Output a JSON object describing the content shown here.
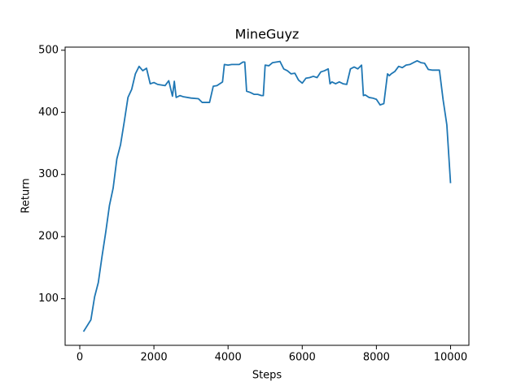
{
  "chart_data": {
    "type": "line",
    "title": "MineGuyz",
    "x_label": "Steps",
    "y_label": "Return",
    "x": [
      100,
      300,
      400,
      500,
      600,
      700,
      800,
      900,
      1000,
      1100,
      1200,
      1300,
      1400,
      1500,
      1600,
      1700,
      1800,
      1900,
      2000,
      2100,
      2200,
      2300,
      2400,
      2500,
      2550,
      2600,
      2700,
      2800,
      3000,
      3200,
      3300,
      3500,
      3600,
      3700,
      3800,
      3850,
      3900,
      4000,
      4100,
      4200,
      4300,
      4400,
      4450,
      4500,
      4600,
      4700,
      4800,
      4900,
      4950,
      5000,
      5100,
      5200,
      5300,
      5400,
      5500,
      5600,
      5700,
      5800,
      5900,
      6000,
      6100,
      6200,
      6300,
      6400,
      6500,
      6600,
      6700,
      6750,
      6800,
      6900,
      7000,
      7100,
      7200,
      7300,
      7400,
      7500,
      7600,
      7650,
      7700,
      7800,
      7900,
      8000,
      8100,
      8200,
      8300,
      8350,
      8400,
      8500,
      8600,
      8700,
      8800,
      8900,
      9000,
      9100,
      9200,
      9300,
      9400,
      9500,
      9600,
      9700,
      9800,
      9900,
      10000
    ],
    "series": [
      {
        "name": "Return",
        "color": "#1f77b4",
        "values": [
          47,
          66,
          103,
          126,
          168,
          207,
          250,
          278,
          325,
          348,
          385,
          424,
          437,
          462,
          474,
          467,
          471,
          446,
          448,
          445,
          444,
          443,
          451,
          426,
          450,
          424,
          427,
          425,
          423,
          422,
          416,
          416,
          442,
          443,
          447,
          449,
          477,
          476,
          477,
          477,
          477,
          481,
          481,
          434,
          432,
          429,
          429,
          427,
          427,
          476,
          475,
          480,
          481,
          482,
          470,
          467,
          462,
          463,
          452,
          447,
          455,
          456,
          458,
          456,
          465,
          467,
          470,
          446,
          449,
          446,
          449,
          446,
          445,
          470,
          473,
          470,
          476,
          427,
          428,
          424,
          423,
          421,
          412,
          414,
          462,
          459,
          462,
          466,
          474,
          472,
          476,
          477,
          480,
          483,
          480,
          479,
          469,
          468,
          468,
          468,
          420,
          380,
          286
        ]
      }
    ],
    "xlim": [
      -395,
      10495
    ],
    "ylim": [
      25,
      505
    ],
    "xticks": [
      0,
      2000,
      4000,
      6000,
      8000,
      10000
    ],
    "yticks": [
      100,
      200,
      300,
      400,
      500
    ]
  }
}
